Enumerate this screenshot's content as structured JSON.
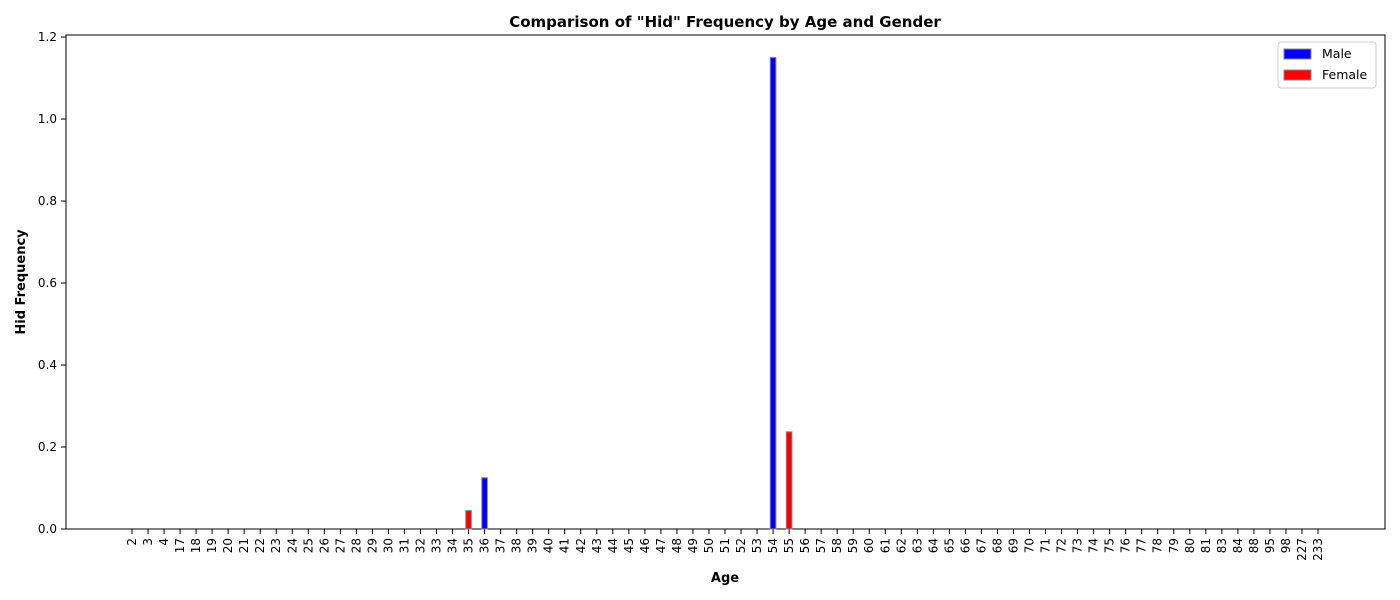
{
  "chart_data": {
    "type": "bar",
    "title": "Comparison of \"Hid\" Frequency by Age and Gender",
    "xlabel": "Age",
    "ylabel": "Hid Frequency",
    "ylim": [
      0,
      1.205
    ],
    "yticks": [
      "0.0",
      "0.2",
      "0.4",
      "0.6",
      "0.8",
      "1.0",
      "1.2"
    ],
    "legend_position": "top-right",
    "categories": [
      "2",
      "3",
      "4",
      "17",
      "18",
      "19",
      "20",
      "21",
      "22",
      "23",
      "24",
      "25",
      "26",
      "27",
      "28",
      "29",
      "30",
      "31",
      "32",
      "33",
      "34",
      "35",
      "36",
      "37",
      "38",
      "39",
      "40",
      "41",
      "42",
      "43",
      "44",
      "45",
      "46",
      "47",
      "48",
      "49",
      "50",
      "51",
      "52",
      "53",
      "54",
      "55",
      "56",
      "57",
      "58",
      "59",
      "60",
      "61",
      "62",
      "63",
      "64",
      "65",
      "66",
      "67",
      "68",
      "69",
      "70",
      "71",
      "72",
      "73",
      "74",
      "75",
      "76",
      "77",
      "78",
      "79",
      "80",
      "81",
      "83",
      "84",
      "88",
      "95",
      "98",
      "227",
      "233"
    ],
    "series": [
      {
        "name": "Male",
        "color": "#0000ff",
        "values": [
          0,
          0,
          0,
          0,
          0,
          0,
          0,
          0,
          0,
          0,
          0,
          0,
          0,
          0,
          0,
          0,
          0,
          0,
          0,
          0,
          0,
          0,
          0.125,
          0,
          0,
          0,
          0,
          0,
          0,
          0,
          0,
          0,
          0,
          0,
          0,
          0,
          0,
          0,
          0,
          0,
          1.15,
          0,
          0,
          0,
          0,
          0,
          0,
          0,
          0,
          0,
          0,
          0,
          0,
          0,
          0,
          0,
          0,
          0,
          0,
          0,
          0,
          0,
          0,
          0,
          0,
          0,
          0,
          0,
          0,
          0,
          0,
          0,
          0,
          0,
          0
        ]
      },
      {
        "name": "Female",
        "color": "#ff0000",
        "values": [
          0,
          0,
          0,
          0,
          0,
          0,
          0,
          0,
          0,
          0,
          0,
          0,
          0,
          0,
          0,
          0,
          0,
          0,
          0,
          0,
          0,
          0.045,
          0,
          0,
          0,
          0,
          0,
          0,
          0,
          0,
          0,
          0,
          0,
          0,
          0,
          0,
          0,
          0,
          0,
          0,
          0,
          0.237,
          0,
          0,
          0,
          0,
          0,
          0,
          0,
          0,
          0,
          0,
          0,
          0,
          0,
          0,
          0,
          0,
          0,
          0,
          0,
          0,
          0,
          0,
          0,
          0,
          0,
          0,
          0,
          0,
          0,
          0,
          0,
          0,
          0
        ]
      }
    ]
  }
}
